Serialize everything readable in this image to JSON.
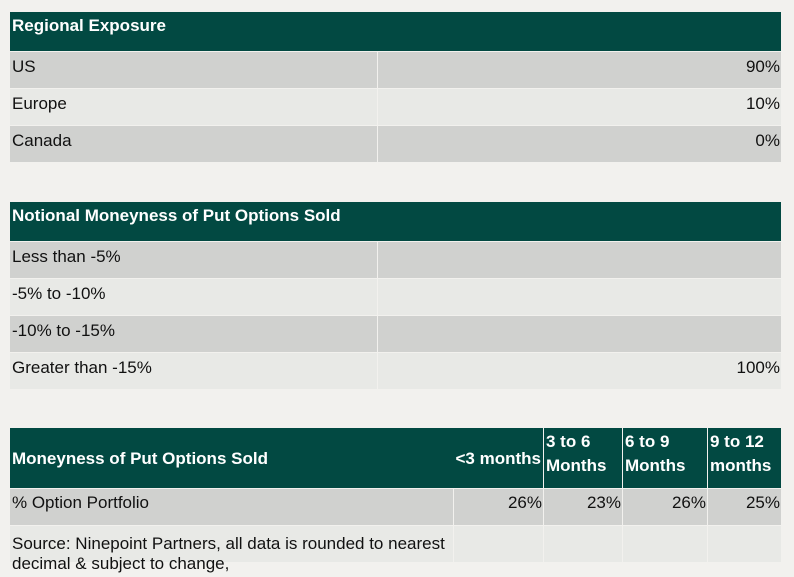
{
  "regional": {
    "title": "Regional Exposure",
    "rows": [
      {
        "label": "US",
        "value": "90%"
      },
      {
        "label": "Europe",
        "value": "10%"
      },
      {
        "label": "Canada",
        "value": "0%"
      }
    ]
  },
  "moneyness": {
    "title": "Notional Moneyness of Put Options Sold",
    "rows": [
      {
        "label": "Less than -5%",
        "value": ""
      },
      {
        "label": "-5% to -10%",
        "value": ""
      },
      {
        "label": "-10% to -15%",
        "value": ""
      },
      {
        "label": "Greater than -15%",
        "value": "100%"
      }
    ]
  },
  "maturity": {
    "title": "Moneyness of Put Options Sold",
    "headers": [
      "<3 months",
      "3 to 6 Months",
      "6 to 9 Months",
      "9 to 12 months"
    ],
    "row_label": "% Option Portfolio",
    "values": [
      "26%",
      "23%",
      "26%",
      "25%"
    ],
    "source": "Source: Ninepoint Partners, all data is rounded to nearest decimal & subject to change,"
  },
  "colors": {
    "header_bg": "#024942",
    "row_dark": "#d0d1cf",
    "row_light": "#e8e9e6",
    "page_bg": "#f2f1ee"
  }
}
